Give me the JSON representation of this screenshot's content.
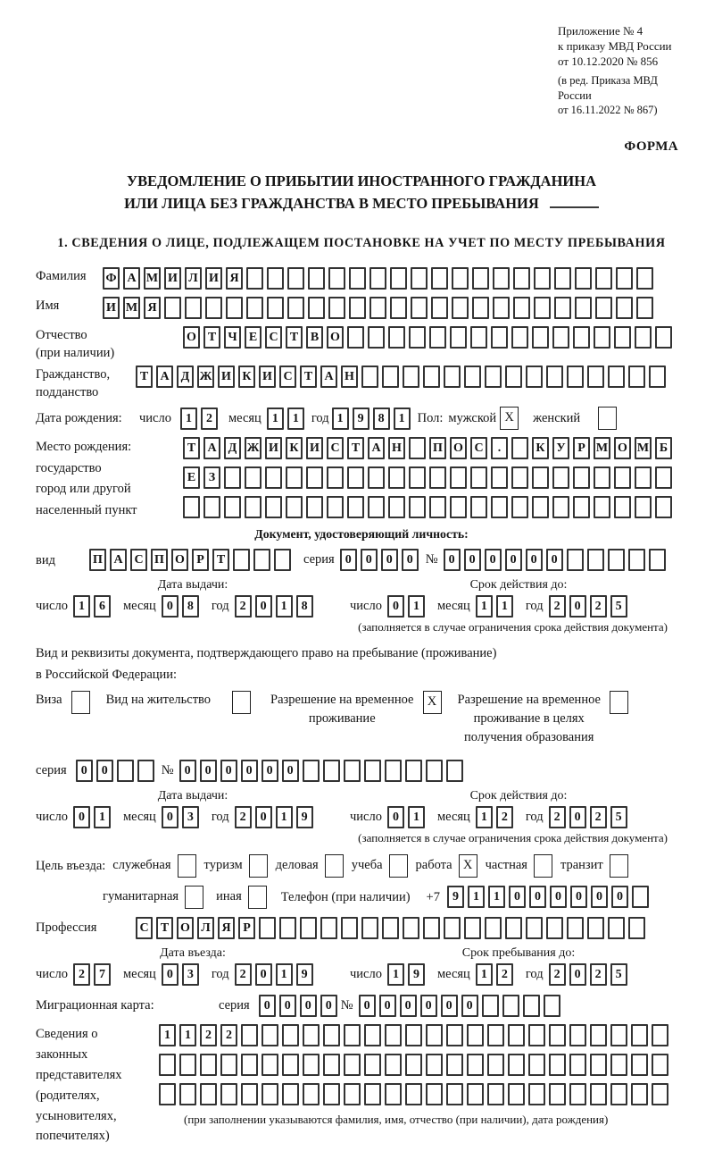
{
  "meta": {
    "appendix_lines": [
      "Приложение № 4",
      "к приказу МВД России",
      "от 10.12.2020 № 856"
    ],
    "amendment_lines": [
      "(в ред. Приказа МВД России",
      "от 16.11.2022 № 867)"
    ],
    "form_label": "ФОРМА"
  },
  "title": {
    "line1": "УВЕДОМЛЕНИЕ О ПРИБЫТИИ ИНОСТРАННОГО ГРАЖДАНИНА",
    "line2": "ИЛИ ЛИЦА БЕЗ ГРАЖДАНСТВА В МЕСТО ПРЕБЫВАНИЯ"
  },
  "section1": {
    "heading": "1. СВЕДЕНИЯ О ЛИЦЕ, ПОДЛЕЖАЩЕМ ПОСТАНОВКЕ НА УЧЕТ ПО МЕСТУ ПРЕБЫВАНИЯ"
  },
  "date_labels": {
    "day": "число",
    "month": "месяц",
    "year": "год"
  },
  "person": {
    "surname": {
      "label": "Фамилия",
      "cells": {
        "count": 27,
        "value": "ФАМИЛИЯ"
      }
    },
    "name": {
      "label": "Имя",
      "cells": {
        "count": 27,
        "value": "ИМЯ"
      }
    },
    "patronymic": {
      "label_lines": [
        "Отчество",
        "(при наличии)"
      ],
      "cells": {
        "count": 24,
        "value": "ОТЧЕСТВО"
      }
    },
    "citizenship": {
      "label_lines": [
        "Гражданство,",
        "подданство"
      ],
      "cells": {
        "count": 26,
        "value": "ТАДЖИКИСТАН"
      }
    },
    "birth_date": {
      "label": "Дата рождения:",
      "day": {
        "count": 2,
        "value": "12"
      },
      "month": {
        "count": 2,
        "value": "11"
      },
      "year": {
        "count": 4,
        "value": "1981"
      },
      "sex_label": "Пол:",
      "male_label": "мужской",
      "male_mark": "X",
      "female_label": "женский",
      "female_mark": ""
    },
    "birth_place": {
      "label_lines": [
        "Место рождения:",
        "государство",
        "город или другой",
        "населенный пункт"
      ],
      "rows": [
        {
          "count": 24,
          "value": "ТАДЖИКИСТАН ПОС. КУРМОМБ"
        },
        {
          "count": 24,
          "value": "ЕЗ"
        },
        {
          "count": 24,
          "value": ""
        }
      ]
    }
  },
  "identity_doc": {
    "heading": "Документ, удостоверяющий личность:",
    "type_label": "вид",
    "type_cells": {
      "count": 10,
      "value": "ПАСПОРТ"
    },
    "series_label": "серия",
    "series_cells": {
      "count": 4,
      "value": "0000"
    },
    "number_label": "№",
    "number_cells": {
      "count": 11,
      "value": "000000"
    },
    "issue": {
      "heading": "Дата выдачи:",
      "day": {
        "count": 2,
        "value": "16"
      },
      "month": {
        "count": 2,
        "value": "08"
      },
      "year": {
        "count": 4,
        "value": "2018"
      }
    },
    "expiry": {
      "heading": "Срок действия до:",
      "day": {
        "count": 2,
        "value": "01"
      },
      "month": {
        "count": 2,
        "value": "11"
      },
      "year": {
        "count": 4,
        "value": "2025"
      }
    },
    "note": "(заполняется в случае ограничения срока действия документа)"
  },
  "residence_doc": {
    "intro_lines": [
      "Вид и реквизиты документа, подтверждающего право на пребывание (проживание)",
      "в Российской Федерации:"
    ],
    "options": [
      {
        "label_lines": [
          "Виза"
        ],
        "mark": ""
      },
      {
        "label_lines": [
          "Вид на жительство"
        ],
        "mark": ""
      },
      {
        "label_lines": [
          "Разрешение на временное",
          "проживание"
        ],
        "mark": "X"
      },
      {
        "label_lines": [
          "Разрешение на временное",
          "проживание в целях",
          "получения образования"
        ],
        "mark": ""
      }
    ],
    "series_label": "серия",
    "series_cells": {
      "count": 4,
      "value": "00"
    },
    "number_label": "№",
    "number_cells": {
      "count": 14,
      "value": "000000"
    },
    "issue": {
      "heading": "Дата выдачи:",
      "day": {
        "count": 2,
        "value": "01"
      },
      "month": {
        "count": 2,
        "value": "03"
      },
      "year": {
        "count": 4,
        "value": "2019"
      }
    },
    "expiry": {
      "heading": "Срок действия до:",
      "day": {
        "count": 2,
        "value": "01"
      },
      "month": {
        "count": 2,
        "value": "12"
      },
      "year": {
        "count": 4,
        "value": "2025"
      }
    },
    "note": "(заполняется в случае ограничения срока действия документа)"
  },
  "visit": {
    "label": "Цель въезда:",
    "options1": [
      {
        "label": "служебная",
        "mark": ""
      },
      {
        "label": "туризм",
        "mark": ""
      },
      {
        "label": "деловая",
        "mark": ""
      },
      {
        "label": "учеба",
        "mark": ""
      },
      {
        "label": "работа",
        "mark": "X"
      },
      {
        "label": "частная",
        "mark": ""
      },
      {
        "label": "транзит",
        "mark": ""
      }
    ],
    "options2": [
      {
        "label": "гуманитарная",
        "mark": ""
      },
      {
        "label": "иная",
        "mark": ""
      }
    ],
    "phone_label": "Телефон (при наличии)",
    "phone_prefix": "+7",
    "phone_cells": {
      "count": 10,
      "value": "911000000"
    }
  },
  "profession": {
    "label": "Профессия",
    "cells": {
      "count": 25,
      "value": "СТОЛЯР"
    }
  },
  "entry": {
    "issue": {
      "heading": "Дата въезда:",
      "day": {
        "count": 2,
        "value": "27"
      },
      "month": {
        "count": 2,
        "value": "03"
      },
      "year": {
        "count": 4,
        "value": "2019"
      }
    },
    "expiry": {
      "heading": "Срок пребывания до:",
      "day": {
        "count": 2,
        "value": "19"
      },
      "month": {
        "count": 2,
        "value": "12"
      },
      "year": {
        "count": 4,
        "value": "2025"
      }
    }
  },
  "migration_card": {
    "label": "Миграционная карта:",
    "series_label": "серия",
    "series_cells": {
      "count": 4,
      "value": "0000"
    },
    "number_label": "№",
    "number_cells": {
      "count": 10,
      "value": "000000"
    }
  },
  "representatives": {
    "label_lines": [
      "Сведения о",
      "законных",
      "представителях",
      "(родителях,",
      "усыновителях,",
      "попечителях)"
    ],
    "rows": [
      {
        "count": 25,
        "value": "1122"
      },
      {
        "count": 25,
        "value": ""
      },
      {
        "count": 25,
        "value": ""
      }
    ],
    "note": "(при заполнении указываются фамилия, имя, отчество (при наличии), дата рождения)"
  }
}
